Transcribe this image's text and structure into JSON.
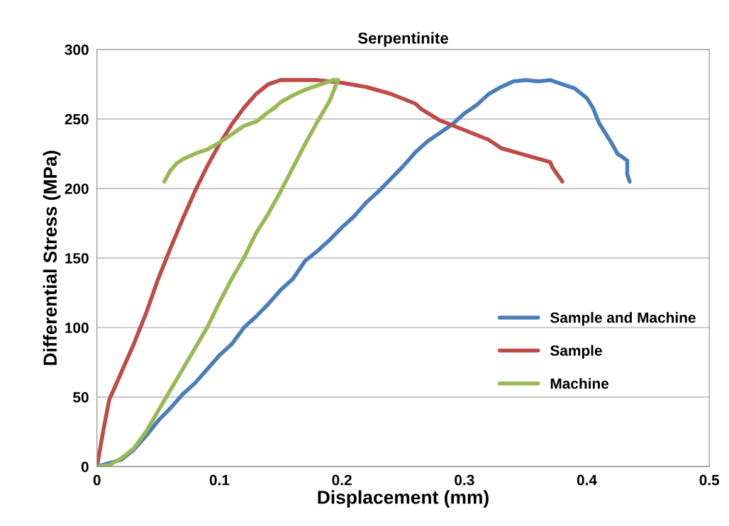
{
  "chart_data": {
    "type": "line",
    "title": "Serpentinite",
    "xlabel": "Displacement (mm)",
    "ylabel": "Differential Stress (MPa)",
    "xlim": [
      0,
      0.5
    ],
    "xticks": [
      {
        "value": 0,
        "label": "0"
      },
      0.1,
      0.2,
      0.3,
      0.4,
      0.5
    ],
    "ylim": [
      0,
      300
    ],
    "yticks": [
      0,
      50,
      100,
      150,
      200,
      250,
      300
    ],
    "grid": "y",
    "legend": "center right",
    "marker": "none",
    "line_style": "solid",
    "series": [
      {
        "name": "Sample and Machine",
        "color": "#4a7ebb",
        "x": [
          0,
          0.02,
          0.03,
          0.04,
          0.05,
          0.06,
          0.07,
          0.08,
          0.09,
          0.1,
          0.11,
          0.12,
          0.13,
          0.14,
          0.15,
          0.16,
          0.17,
          0.18,
          0.19,
          0.2,
          0.21,
          0.22,
          0.23,
          0.24,
          0.25,
          0.26,
          0.27,
          0.28,
          0.29,
          0.3,
          0.31,
          0.32,
          0.33,
          0.34,
          0.35,
          0.36,
          0.37,
          0.38,
          0.39,
          0.4,
          0.405,
          0.41,
          0.415,
          0.42,
          0.425,
          0.43,
          0.433,
          0.433,
          0.435
        ],
        "values": [
          0,
          5,
          12,
          22,
          33,
          42,
          52,
          60,
          70,
          80,
          88,
          100,
          108,
          117,
          127,
          135,
          148,
          155,
          163,
          172,
          180,
          190,
          198,
          207,
          216,
          226,
          234,
          240,
          246,
          254,
          260,
          268,
          273,
          277,
          278,
          277,
          278,
          275,
          272,
          265,
          258,
          247,
          240,
          233,
          225,
          222,
          220,
          210,
          205
        ]
      },
      {
        "name": "Sample",
        "color": "#be4b48",
        "x": [
          0,
          0.005,
          0.01,
          0.02,
          0.03,
          0.04,
          0.05,
          0.06,
          0.07,
          0.08,
          0.09,
          0.1,
          0.11,
          0.12,
          0.13,
          0.14,
          0.15,
          0.17,
          0.18,
          0.2,
          0.22,
          0.24,
          0.26,
          0.265,
          0.28,
          0.3,
          0.32,
          0.33,
          0.35,
          0.37,
          0.372,
          0.38
        ],
        "values": [
          0,
          25,
          48,
          68,
          88,
          110,
          135,
          157,
          178,
          198,
          216,
          232,
          246,
          258,
          268,
          275,
          278,
          278,
          278,
          276,
          273,
          268,
          261,
          257,
          249,
          242,
          235,
          229,
          224,
          219,
          215,
          205
        ]
      },
      {
        "name": "Machine",
        "color": "#98b954",
        "x": [
          0,
          0.01,
          0.02,
          0.03,
          0.04,
          0.05,
          0.06,
          0.07,
          0.08,
          0.09,
          0.1,
          0.11,
          0.12,
          0.13,
          0.14,
          0.15,
          0.16,
          0.17,
          0.18,
          0.19,
          0.195,
          0.197,
          0.193,
          0.18,
          0.17,
          0.16,
          0.15,
          0.145,
          0.14,
          0.13,
          0.12,
          0.11,
          0.1,
          0.09,
          0.08,
          0.07,
          0.065,
          0.06,
          0.055
        ],
        "values": [
          0,
          1,
          6,
          13,
          25,
          40,
          55,
          70,
          85,
          100,
          118,
          135,
          150,
          168,
          182,
          198,
          215,
          232,
          248,
          263,
          274,
          278,
          278,
          274,
          271,
          267,
          262,
          258,
          255,
          248,
          245,
          239,
          233,
          228,
          225,
          221,
          218,
          213,
          205
        ]
      }
    ]
  }
}
